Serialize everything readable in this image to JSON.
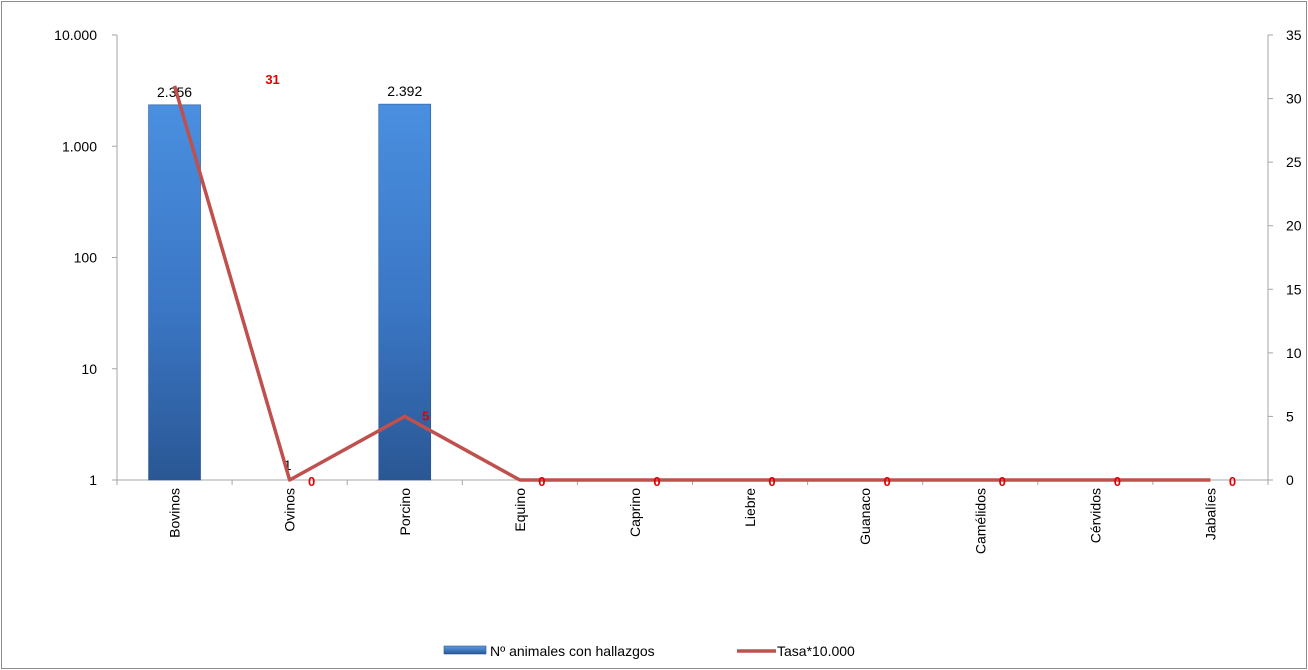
{
  "chart_data": {
    "type": "bar",
    "categories": [
      "Bovinos",
      "Ovinos",
      "Porcino",
      "Equino",
      "Caprino",
      "Liebre",
      "Guanaco",
      "Camélidos",
      "Cérvidos",
      "Jabalíes"
    ],
    "series": [
      {
        "name": "Nº animales con hallazgos",
        "type": "bar",
        "axis": "left",
        "values": [
          2356,
          1,
          2392,
          0,
          0,
          0,
          0,
          0,
          0,
          0
        ],
        "data_labels": [
          "2.356",
          "1",
          "2.392",
          "",
          "",
          "",
          "",
          "",
          "",
          ""
        ],
        "color": "#3a78c8"
      },
      {
        "name": "Tasa*10.000",
        "type": "line",
        "axis": "right",
        "values": [
          31,
          0,
          5,
          0,
          0,
          0,
          0,
          0,
          0,
          0
        ],
        "data_labels": [
          "31",
          "0",
          "5",
          "0",
          "0",
          "0",
          "0",
          "0",
          "0",
          "0"
        ],
        "color": "#c0504d",
        "label_color": "#e00000"
      }
    ],
    "y_left": {
      "scale": "log",
      "range": [
        1,
        10000
      ],
      "ticks": [
        1,
        10,
        100,
        1000,
        10000
      ],
      "tick_labels": [
        "1",
        "10",
        "100",
        "1.000",
        "10.000"
      ]
    },
    "y_right": {
      "scale": "linear",
      "range": [
        0,
        35
      ],
      "ticks": [
        0,
        5,
        10,
        15,
        20,
        25,
        30,
        35
      ],
      "tick_labels": [
        "0",
        "5",
        "10",
        "15",
        "20",
        "25",
        "30",
        "35"
      ]
    },
    "grid": false,
    "legend_position": "bottom"
  }
}
